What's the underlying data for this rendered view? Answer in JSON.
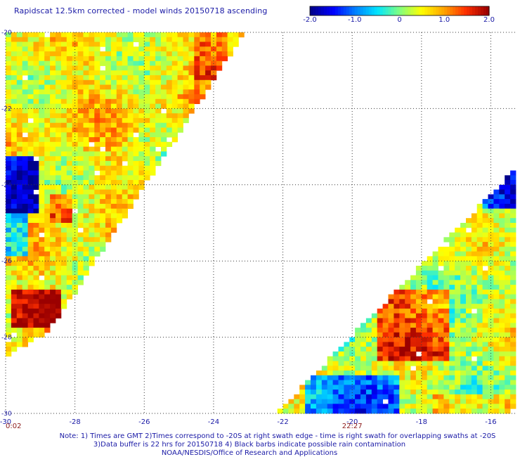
{
  "title": "Rapidscat 12.5km corrected - model winds 20150718 ascending",
  "colorbar": {
    "ticks": [
      "-2.0",
      "-1.0",
      "0",
      "1.0",
      "2.0"
    ],
    "tick_values": [
      -2.0,
      -1.0,
      0,
      1.0,
      2.0
    ],
    "range": [
      -2.0,
      2.0
    ],
    "colors": [
      "#00008b",
      "#0000ff",
      "#0080ff",
      "#00e5ff",
      "#80ff80",
      "#ffff00",
      "#ffa500",
      "#ff3000",
      "#9b0000"
    ]
  },
  "axes": {
    "x_ticks": [
      "-30",
      "-28",
      "-26",
      "-24",
      "-22",
      "-20",
      "-18",
      "-16"
    ],
    "x_values": [
      -30,
      -28,
      -26,
      -24,
      -22,
      -20,
      -18,
      -16
    ],
    "y_ticks": [
      "-20",
      "-22",
      "-24",
      "-26",
      "-28",
      "-30"
    ],
    "y_values": [
      -20,
      -22,
      -24,
      -26,
      -28,
      -30
    ],
    "lon_range": [
      -30,
      -15.3
    ],
    "lat_range": [
      -30,
      -20
    ],
    "grid": "dotted"
  },
  "time_labels": [
    {
      "text": "0:02",
      "lon": -30
    },
    {
      "text": "22:27",
      "lon": -20
    }
  ],
  "swaths": [
    {
      "name": "left",
      "edge": [
        [
          -30,
          -20
        ],
        [
          -23.1,
          -20
        ],
        [
          -28.7,
          -27.8
        ],
        [
          -30,
          -28.5
        ]
      ]
    },
    {
      "name": "right",
      "edge": [
        [
          -22.2,
          -30
        ],
        [
          -15.3,
          -30
        ],
        [
          -15.3,
          -23.6
        ]
      ]
    }
  ],
  "notes": [
    "Note: 1) Times are GMT 2)Times correspond to -20S at right swath edge - time is right swath for overlapping swaths at -20S",
    "3)Data buffer is 22 hrs for 20150718 4) Black barbs indicate possible rain contamination",
    "NOAA/NESDIS/Office of Research and Applications"
  ]
}
